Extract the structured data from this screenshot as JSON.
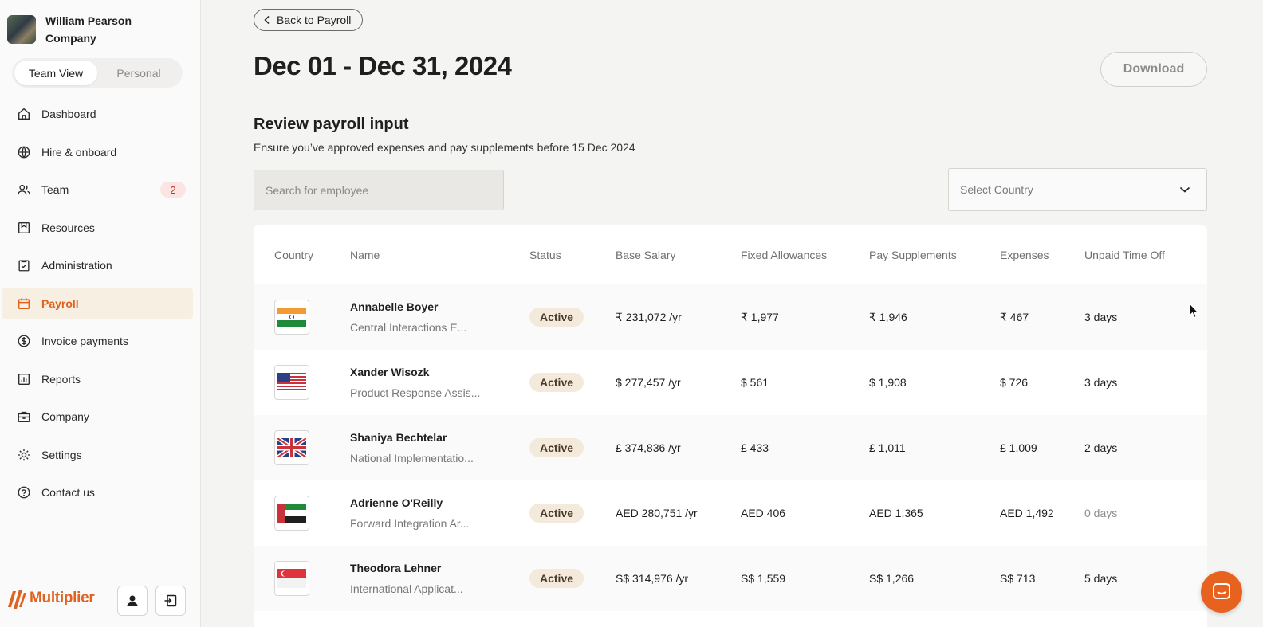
{
  "profile": {
    "name_line1": "William Pearson",
    "name_line2": "Company"
  },
  "view_toggle": {
    "team": "Team View",
    "personal": "Personal"
  },
  "nav": [
    {
      "label": "Dashboard",
      "icon": "home-icon"
    },
    {
      "label": "Hire & onboard",
      "icon": "globe-icon"
    },
    {
      "label": "Team",
      "icon": "users-icon",
      "badge": "2"
    },
    {
      "label": "Resources",
      "icon": "resources-icon"
    },
    {
      "label": "Administration",
      "icon": "checklist-icon"
    },
    {
      "label": "Payroll",
      "icon": "calendar-icon",
      "active": true
    },
    {
      "label": "Invoice payments",
      "icon": "dollar-circle-icon"
    },
    {
      "label": "Reports",
      "icon": "bar-chart-icon"
    },
    {
      "label": "Company",
      "icon": "briefcase-icon"
    },
    {
      "label": "Settings",
      "icon": "gear-icon"
    },
    {
      "label": "Contact us",
      "icon": "help-circle-icon"
    }
  ],
  "logo": {
    "text": "Multiplier",
    "color": "#e0621f"
  },
  "main": {
    "back_label": "Back to Payroll",
    "title": "Dec 01 - Dec 31, 2024",
    "download_label": "Download",
    "section_title": "Review payroll input",
    "section_sub": "Ensure you’ve approved expenses and pay supplements before 15 Dec 2024",
    "search_placeholder": "Search for employee",
    "country_placeholder": "Select Country"
  },
  "table": {
    "headers": [
      "Country",
      "Name",
      "Status",
      "Base Salary",
      "Fixed Allowances",
      "Pay Supplements",
      "Expenses",
      "Unpaid Time Off"
    ],
    "rows": [
      {
        "flag": "india",
        "name": "Annabelle Boyer",
        "role": "Central Interactions E...",
        "status": "Active",
        "base": "₹ 231,072 /yr",
        "allow": "₹ 1,977",
        "supp": "₹ 1,946",
        "exp": "₹ 467",
        "pto": "3 days"
      },
      {
        "flag": "usa",
        "name": "Xander Wisozk",
        "role": "Product Response Assis...",
        "status": "Active",
        "base": "$ 277,457 /yr",
        "allow": "$ 561",
        "supp": "$ 1,908",
        "exp": "$ 726",
        "pto": "3 days"
      },
      {
        "flag": "uk",
        "name": "Shaniya Bechtelar",
        "role": "National Implementatio...",
        "status": "Active",
        "base": "£ 374,836 /yr",
        "allow": "£ 433",
        "supp": "£ 1,011",
        "exp": "£ 1,009",
        "pto": "2 days"
      },
      {
        "flag": "uae",
        "name": "Adrienne O'Reilly",
        "role": "Forward Integration Ar...",
        "status": "Active",
        "base": "AED 280,751 /yr",
        "allow": "AED 406",
        "supp": "AED 1,365",
        "exp": "AED 1,492",
        "pto": "0 days"
      },
      {
        "flag": "singapore",
        "name": "Theodora Lehner",
        "role": "International Applicat...",
        "status": "Active",
        "base": "S$ 314,976 /yr",
        "allow": "S$ 1,559",
        "supp": "S$ 1,266",
        "exp": "S$ 713",
        "pto": "5 days"
      }
    ]
  },
  "colors": {
    "accent": "#e0621f",
    "status_bg": "#f3eadb",
    "badge_bg": "#fbe4e2"
  }
}
